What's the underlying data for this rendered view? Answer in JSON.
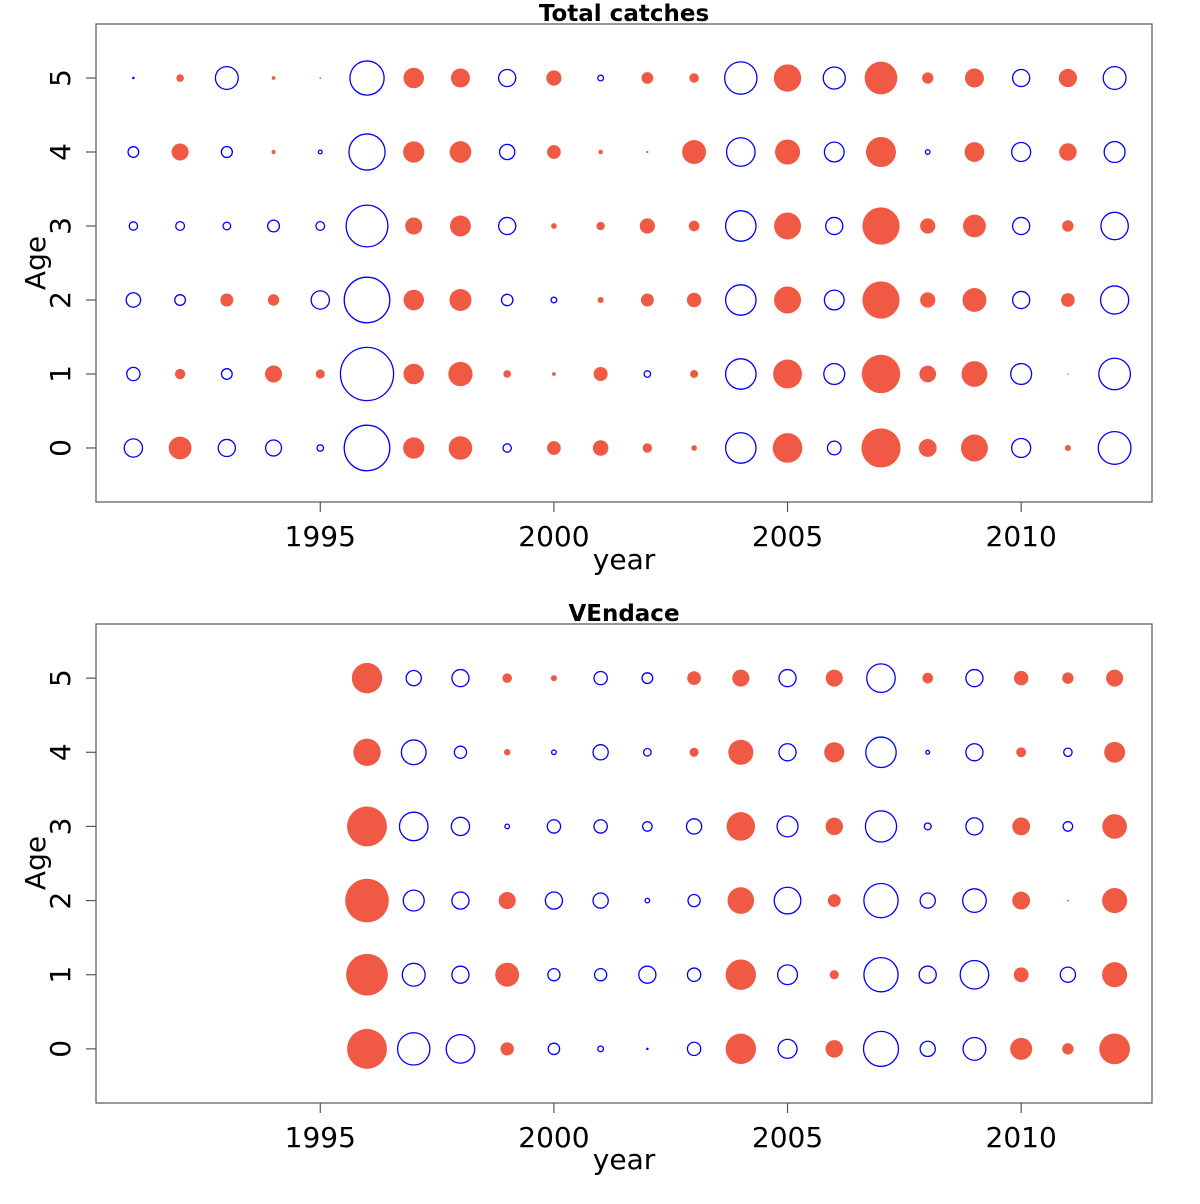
{
  "colors": {
    "negative": "#f05a44",
    "positive": "#0000ff",
    "frame": "#555555"
  },
  "chart_data": [
    {
      "type": "bubble",
      "title": "Total catches",
      "xlabel": "year",
      "ylabel": "Age",
      "xlim": [
        1990.2,
        2012.8
      ],
      "ylim": [
        -0.73,
        5.73
      ],
      "xticks": [
        1995,
        2000,
        2005,
        2010
      ],
      "yticks": [
        0,
        1,
        2,
        3,
        4,
        5
      ],
      "legend": "none",
      "encoding": "filled red = negative residual, open blue = positive residual; radius = magnitude",
      "years": [
        1991,
        1992,
        1993,
        1994,
        1995,
        1996,
        1997,
        1998,
        1999,
        2000,
        2001,
        2002,
        2003,
        2004,
        2005,
        2006,
        2007,
        2008,
        2009,
        2010,
        2011,
        2012
      ],
      "ages": [
        0,
        1,
        2,
        3,
        4,
        5
      ],
      "values": [
        [
          0.48,
          0.35,
          0.38,
          0.22,
          0.28,
          0.02
        ],
        [
          -0.6,
          -0.27,
          0.28,
          0.23,
          -0.45,
          -0.2
        ],
        [
          0.45,
          0.28,
          -0.34,
          0.2,
          0.29,
          0.6
        ],
        [
          0.42,
          -0.45,
          -0.3,
          0.31,
          -0.11,
          -0.1
        ],
        [
          0.17,
          -0.24,
          0.48,
          0.23,
          0.1,
          -0.05
        ],
        [
          1.2,
          1.4,
          1.2,
          1.1,
          0.95,
          0.9
        ],
        [
          -0.56,
          -0.54,
          -0.54,
          -0.45,
          -0.56,
          -0.54
        ],
        [
          -0.62,
          -0.64,
          -0.58,
          -0.55,
          -0.57,
          -0.5
        ],
        [
          0.22,
          -0.2,
          0.3,
          0.45,
          0.4,
          0.45
        ],
        [
          -0.36,
          -0.1,
          0.15,
          -0.15,
          -0.36,
          -0.4
        ],
        [
          -0.41,
          -0.37,
          -0.16,
          -0.22,
          -0.12,
          0.15
        ],
        [
          -0.25,
          0.17,
          -0.34,
          -0.4,
          -0.06,
          -0.31
        ],
        [
          -0.15,
          -0.21,
          -0.38,
          -0.28,
          -0.63,
          -0.25
        ],
        [
          0.8,
          0.8,
          0.8,
          0.8,
          0.75,
          0.85
        ],
        [
          -0.78,
          -0.76,
          -0.71,
          -0.71,
          -0.66,
          -0.72
        ],
        [
          0.36,
          0.55,
          0.52,
          0.45,
          0.52,
          0.58
        ],
        [
          -1.03,
          -1.01,
          -0.98,
          -0.98,
          -0.79,
          -0.86
        ],
        [
          -0.47,
          -0.44,
          -0.4,
          -0.4,
          0.12,
          -0.3
        ],
        [
          -0.71,
          -0.68,
          -0.63,
          -0.6,
          -0.52,
          -0.5
        ],
        [
          0.5,
          0.55,
          0.45,
          0.45,
          0.5,
          0.45
        ],
        [
          -0.16,
          -0.04,
          -0.36,
          -0.3,
          -0.46,
          -0.48
        ],
        [
          0.86,
          0.83,
          0.74,
          0.72,
          0.55,
          0.6
        ]
      ]
    },
    {
      "type": "bubble",
      "title": "VEndace",
      "xlabel": "year",
      "ylabel": "Age",
      "xlim": [
        1990.2,
        2012.8
      ],
      "ylim": [
        -0.73,
        5.73
      ],
      "xticks": [
        1995,
        2000,
        2005,
        2010
      ],
      "yticks": [
        0,
        1,
        2,
        3,
        4,
        5
      ],
      "legend": "none",
      "encoding": "filled red = negative residual, open blue = positive residual; radius = magnitude",
      "years": [
        1996,
        1997,
        1998,
        1999,
        2000,
        2001,
        2002,
        2003,
        2004,
        2005,
        2006,
        2007,
        2008,
        2009,
        2010,
        2011,
        2012
      ],
      "ages": [
        0,
        1,
        2,
        3,
        4,
        5
      ],
      "values": [
        [
          -1.05,
          -1.1,
          -1.15,
          -1.05,
          -0.72,
          -0.8
        ],
        [
          0.85,
          0.6,
          0.55,
          0.75,
          0.65,
          0.4
        ],
        [
          0.75,
          0.45,
          0.45,
          0.48,
          0.32,
          0.45
        ],
        [
          -0.35,
          -0.63,
          -0.45,
          0.12,
          -0.17,
          -0.25
        ],
        [
          0.3,
          0.32,
          0.45,
          0.35,
          0.12,
          -0.16
        ],
        [
          0.15,
          0.32,
          0.4,
          0.35,
          0.4,
          0.35
        ],
        [
          0.02,
          0.45,
          0.12,
          0.25,
          0.2,
          0.28
        ],
        [
          0.35,
          0.35,
          0.32,
          0.4,
          -0.24,
          -0.36
        ],
        [
          -0.8,
          -0.8,
          -0.7,
          -0.75,
          -0.66,
          -0.45
        ],
        [
          0.5,
          0.52,
          0.7,
          0.55,
          0.45,
          0.45
        ],
        [
          -0.46,
          -0.24,
          -0.34,
          -0.46,
          -0.53,
          -0.45
        ],
        [
          0.92,
          0.9,
          0.9,
          0.82,
          0.8,
          0.75
        ],
        [
          0.4,
          0.45,
          0.4,
          0.18,
          0.1,
          -0.28
        ],
        [
          0.6,
          0.75,
          0.62,
          0.45,
          0.45,
          0.45
        ],
        [
          -0.58,
          -0.39,
          -0.47,
          -0.47,
          -0.26,
          -0.38
        ],
        [
          -0.3,
          0.4,
          -0.05,
          0.25,
          0.22,
          -0.3
        ],
        [
          -0.81,
          -0.66,
          -0.66,
          -0.65,
          -0.55,
          -0.45
        ]
      ]
    }
  ]
}
